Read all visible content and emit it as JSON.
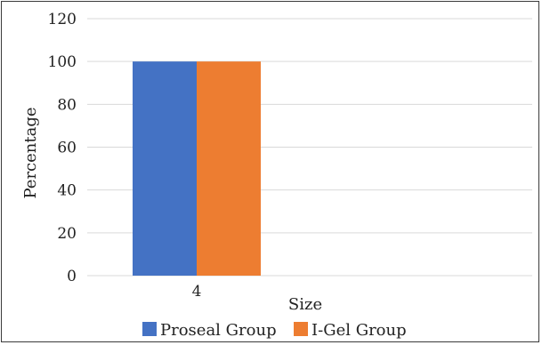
{
  "chart_data": {
    "type": "bar",
    "title": "",
    "xlabel": "Size",
    "ylabel": "Percentage",
    "categories": [
      "4"
    ],
    "series": [
      {
        "name": "Proseal Group",
        "values": [
          100
        ],
        "color": "#4472c4"
      },
      {
        "name": "I-Gel Group",
        "values": [
          100
        ],
        "color": "#ed7d31"
      }
    ],
    "ylim": [
      0,
      120
    ],
    "yticks": [
      0,
      20,
      40,
      60,
      80,
      100,
      120
    ],
    "grid": true,
    "legend": "bottom-center"
  }
}
